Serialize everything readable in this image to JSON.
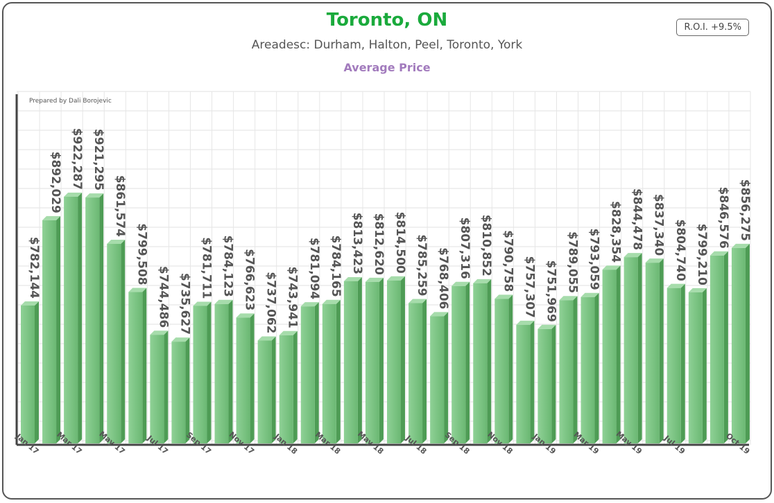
{
  "header": {
    "title": "Toronto, ON",
    "subtitle": "Areadesc: Durham, Halton, Peel, Toronto, York",
    "metric": "Average Price",
    "roi": "R.O.I. +9.5%",
    "credit": "Prepared by Dali Borojevic"
  },
  "colors": {
    "title": "#1aaa3c",
    "metric": "#a27bbd",
    "bar": "#73c07a",
    "bar_dark": "#4e9c55",
    "label": "#555555"
  },
  "chart_data": {
    "type": "bar",
    "title": "Toronto, ON",
    "subtitle": "Average Price",
    "grid": true,
    "value_labels": [
      "$782,144",
      "$892,029",
      "$922,287",
      "$921,295",
      "$861,574",
      "$799,508",
      "$744,486",
      "$735,627",
      "$781,711",
      "$784,123",
      "$766,623",
      "$737,062",
      "$743,941",
      "$781,094",
      "$784,165",
      "$813,423",
      "$812,620",
      "$814,500",
      "$785,259",
      "$768,406",
      "$807,316",
      "$810,852",
      "$790,758",
      "$757,307",
      "$751,969",
      "$789,055",
      "$793,059",
      "$828,354",
      "$844,478",
      "$837,340",
      "$804,740",
      "$799,210",
      "$846,576",
      "$856,275"
    ],
    "values": [
      782144,
      892029,
      922287,
      921295,
      861574,
      799508,
      744486,
      735627,
      781711,
      784123,
      766623,
      737062,
      743941,
      781094,
      784165,
      813423,
      812620,
      814500,
      785259,
      768406,
      807316,
      810852,
      790758,
      757307,
      751969,
      789055,
      793059,
      828354,
      844478,
      837340,
      804740,
      799210,
      846576,
      856275
    ],
    "x_tick_labels": [
      "Jan 17",
      "Mar 17",
      "May 17",
      "Jul 17",
      "Sep 17",
      "Nov 17",
      "Jan 18",
      "Mar 18",
      "May 18",
      "Jul 18",
      "Sep 18",
      "Nov 18",
      "Jan 19",
      "Mar 19",
      "May 19",
      "Jul 19",
      "Oct 19"
    ],
    "x_tick_bar_index": [
      0,
      2,
      4,
      6,
      8,
      10,
      12,
      14,
      16,
      18,
      20,
      22,
      24,
      26,
      28,
      30,
      33
    ]
  }
}
